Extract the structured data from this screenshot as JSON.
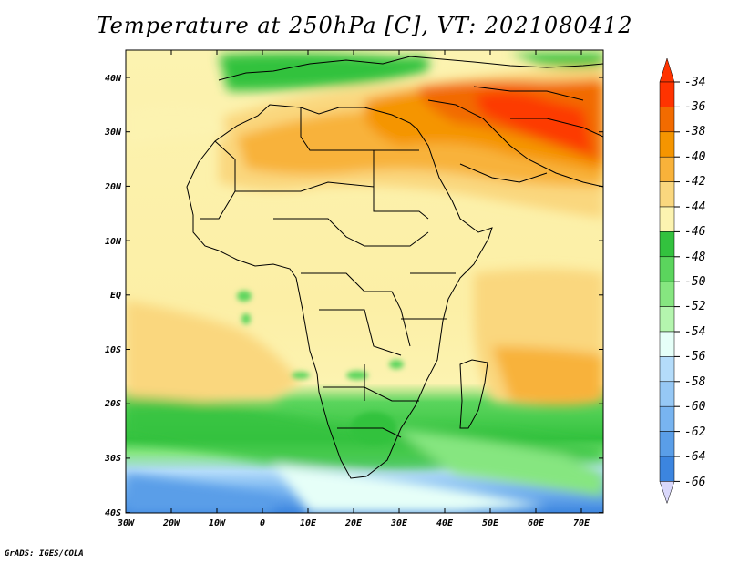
{
  "title": "Temperature at 250hPa [C], VT: 2021080412",
  "credit": "GrADS: IGES/COLA",
  "map": {
    "region": "Africa",
    "variable": "Temperature at 250hPa",
    "units": "C",
    "lon_range": [
      -30,
      75
    ],
    "lat_range": [
      -40,
      45
    ],
    "lon_ticks": [
      "30W",
      "20W",
      "10W",
      "0",
      "10E",
      "20E",
      "30E",
      "40E",
      "50E",
      "60E",
      "70E"
    ],
    "lat_ticks": [
      "40N",
      "30N",
      "20N",
      "10N",
      "EQ",
      "10S",
      "20S",
      "30S",
      "40S"
    ]
  },
  "colorbar": {
    "labels": [
      "-34",
      "-36",
      "-38",
      "-40",
      "-42",
      "-44",
      "-46",
      "-48",
      "-50",
      "-52",
      "-54",
      "-56",
      "-58",
      "-60",
      "-62",
      "-64",
      "-66"
    ],
    "colors": [
      "#ff3300",
      "#f26b00",
      "#f59500",
      "#f8b23a",
      "#fad77e",
      "#fcf3b0",
      "#33c23e",
      "#5bd55d",
      "#86e680",
      "#b4f5ae",
      "#e6fff8",
      "#b4dcfa",
      "#96c8f5",
      "#78b4f0",
      "#5a9ee8",
      "#3c85df",
      "#1f5fc8",
      "#0a3a9a",
      "#04166a"
    ],
    "under_color": "#dad8fb",
    "over_color": "#ff3300"
  }
}
